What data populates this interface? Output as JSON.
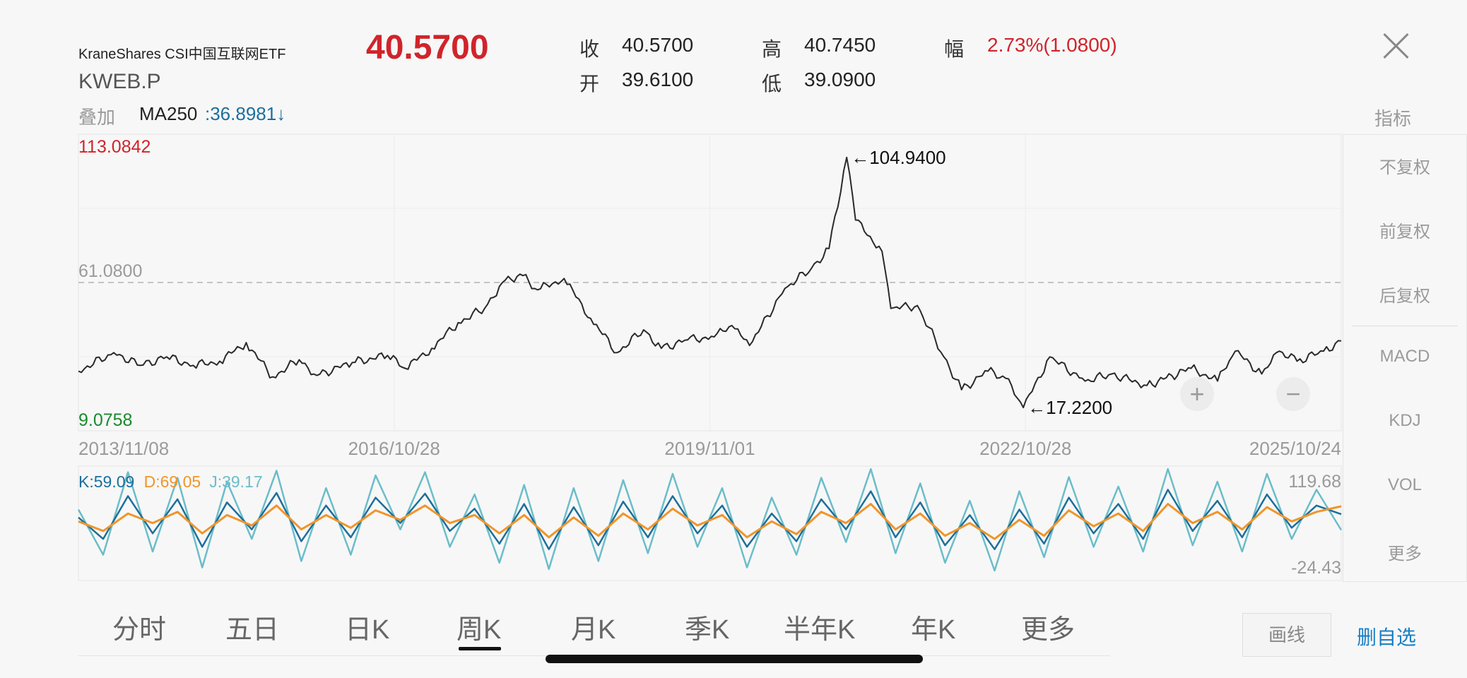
{
  "header": {
    "name": "KraneShares CSI中国互联网ETF",
    "code": "KWEB.P",
    "price": "40.5700",
    "quotes": [
      {
        "label": "收",
        "value": "40.5700"
      },
      {
        "label": "高",
        "value": "40.7450"
      },
      {
        "label": "幅",
        "value": "2.73%(1.0800)"
      },
      {
        "label": "开",
        "value": "39.6100"
      },
      {
        "label": "低",
        "value": "39.0900"
      }
    ],
    "overlay_label": "叠加",
    "ma_name": "MA250",
    "ma_value": ":36.8981↓",
    "indicator_title": "指标"
  },
  "colors": {
    "up_red": "#d0242b",
    "down_green": "#1a8a2e",
    "k_line": "#1c6f9c",
    "d_line": "#f0952a",
    "j_line": "#6bbdc9",
    "accent_blue": "#1a7fc4"
  },
  "icons": {
    "close": "close-icon",
    "zoom_in": "plus-icon",
    "zoom_out": "minus-icon"
  },
  "side_panel": [
    {
      "label": "不复权",
      "active": true
    },
    {
      "label": "前复权",
      "active": false
    },
    {
      "label": "后复权",
      "active": false
    },
    {
      "label": "MACD",
      "active": false
    },
    {
      "label": "KDJ",
      "active": true
    },
    {
      "label": "VOL",
      "active": false
    },
    {
      "label": "更多",
      "active": false
    }
  ],
  "tabs": [
    {
      "label": "分时",
      "active": false
    },
    {
      "label": "五日",
      "active": false
    },
    {
      "label": "日K",
      "active": false
    },
    {
      "label": "周K",
      "active": true
    },
    {
      "label": "月K",
      "active": false
    },
    {
      "label": "季K",
      "active": false
    },
    {
      "label": "半年K",
      "active": false
    },
    {
      "label": "年K",
      "active": false
    },
    {
      "label": "更多",
      "active": false
    }
  ],
  "buttons": {
    "draw": "画线",
    "remove_watch": "删自选"
  },
  "chart_data": [
    {
      "type": "line",
      "ylim": [
        9.0758,
        113.0842
      ],
      "y_top_label": "113.0842",
      "y_bottom_label": "9.0758",
      "ref_line": {
        "value": 61.08,
        "label": "61.0800"
      },
      "x_tick_labels": [
        "2013/11/08",
        "2016/10/28",
        "2019/11/01",
        "2022/10/28",
        "2025/10/24"
      ],
      "annotations": [
        {
          "label": "←104.9400",
          "x": "2021/02",
          "y": 104.94
        },
        {
          "label": "←17.2200",
          "x": "2022/10",
          "y": 17.22
        }
      ],
      "series": [
        {
          "values": [
            {
              "x": "2013/11",
              "y": 30.0
            },
            {
              "x": "2014/03",
              "y": 36.5
            },
            {
              "x": "2014/06",
              "y": 32.0
            },
            {
              "x": "2014/09",
              "y": 35.0
            },
            {
              "x": "2014/12",
              "y": 32.0
            },
            {
              "x": "2015/03",
              "y": 33.5
            },
            {
              "x": "2015/06",
              "y": 40.0
            },
            {
              "x": "2015/09",
              "y": 28.0
            },
            {
              "x": "2015/12",
              "y": 34.0
            },
            {
              "x": "2016/02",
              "y": 28.5
            },
            {
              "x": "2016/06",
              "y": 33.0
            },
            {
              "x": "2016/10",
              "y": 35.5
            },
            {
              "x": "2016/12",
              "y": 31.0
            },
            {
              "x": "2017/03",
              "y": 38.0
            },
            {
              "x": "2017/06",
              "y": 47.0
            },
            {
              "x": "2017/09",
              "y": 52.0
            },
            {
              "x": "2017/11",
              "y": 61.0
            },
            {
              "x": "2018/01",
              "y": 64.0
            },
            {
              "x": "2018/03",
              "y": 58.5
            },
            {
              "x": "2018/06",
              "y": 62.5
            },
            {
              "x": "2018/09",
              "y": 48.5
            },
            {
              "x": "2018/12",
              "y": 36.5
            },
            {
              "x": "2019/03",
              "y": 44.5
            },
            {
              "x": "2019/05",
              "y": 38.0
            },
            {
              "x": "2019/08",
              "y": 41.0
            },
            {
              "x": "2019/11",
              "y": 42.0
            },
            {
              "x": "2020/01",
              "y": 46.0
            },
            {
              "x": "2020/03",
              "y": 39.0
            },
            {
              "x": "2020/07",
              "y": 59.0
            },
            {
              "x": "2020/10",
              "y": 66.0
            },
            {
              "x": "2020/12",
              "y": 73.0
            },
            {
              "x": "2021/02",
              "y": 104.94
            },
            {
              "x": "2021/03",
              "y": 83.0
            },
            {
              "x": "2021/06",
              "y": 72.0
            },
            {
              "x": "2021/07",
              "y": 52.0
            },
            {
              "x": "2021/10",
              "y": 53.0
            },
            {
              "x": "2022/01",
              "y": 35.0
            },
            {
              "x": "2022/03",
              "y": 23.5
            },
            {
              "x": "2022/06",
              "y": 30.0
            },
            {
              "x": "2022/08",
              "y": 27.5
            },
            {
              "x": "2022/10",
              "y": 17.22
            },
            {
              "x": "2023/01",
              "y": 35.0
            },
            {
              "x": "2023/05",
              "y": 26.5
            },
            {
              "x": "2023/08",
              "y": 29.0
            },
            {
              "x": "2023/12",
              "y": 25.0
            },
            {
              "x": "2024/05",
              "y": 31.0
            },
            {
              "x": "2024/08",
              "y": 26.5
            },
            {
              "x": "2024/10",
              "y": 37.0
            },
            {
              "x": "2025/01",
              "y": 29.0
            },
            {
              "x": "2025/03",
              "y": 37.0
            },
            {
              "x": "2025/05",
              "y": 33.5
            },
            {
              "x": "2025/08",
              "y": 37.0
            },
            {
              "x": "2025/10",
              "y": 40.57
            }
          ]
        }
      ]
    },
    {
      "type": "line",
      "ylim": [
        -24.43,
        119.68
      ],
      "y_top_label": "119.68",
      "y_bottom_label": "-24.43",
      "legend": [
        {
          "name": "K",
          "value": "59.09",
          "text": "K:59.09"
        },
        {
          "name": "D",
          "value": "69.05",
          "text": "D:69.05"
        },
        {
          "name": "J",
          "value": "39.17",
          "text": "J:39.17"
        }
      ],
      "series": [
        {
          "name": "K",
          "values": [
            55,
            28,
            82,
            35,
            78,
            18,
            74,
            40,
            86,
            25,
            70,
            30,
            80,
            48,
            85,
            38,
            66,
            22,
            72,
            15,
            68,
            20,
            75,
            30,
            82,
            35,
            70,
            18,
            60,
            25,
            78,
            40,
            88,
            30,
            74,
            20,
            58,
            15,
            65,
            22,
            80,
            35,
            72,
            28,
            90,
            38,
            76,
            30,
            84,
            42,
            70,
            59.09
          ]
        },
        {
          "name": "D",
          "values": [
            50,
            38,
            60,
            48,
            62,
            35,
            58,
            45,
            70,
            40,
            58,
            42,
            64,
            52,
            70,
            48,
            58,
            35,
            58,
            30,
            55,
            32,
            60,
            40,
            66,
            45,
            58,
            30,
            50,
            34,
            62,
            48,
            72,
            40,
            60,
            32,
            48,
            28,
            52,
            32,
            64,
            44,
            60,
            38,
            72,
            48,
            62,
            40,
            68,
            50,
            62,
            69.05
          ]
        },
        {
          "name": "J",
          "values": [
            65,
            8,
            112,
            12,
            105,
            -8,
            100,
            28,
            114,
            0,
            92,
            8,
            108,
            40,
            112,
            18,
            84,
            -2,
            96,
            -10,
            92,
            0,
            102,
            10,
            110,
            18,
            92,
            -8,
            80,
            8,
            105,
            24,
            116,
            10,
            98,
            -2,
            76,
            -12,
            88,
            5,
            106,
            18,
            94,
            12,
            116,
            20,
            100,
            12,
            110,
            28,
            90,
            39.17
          ]
        }
      ]
    }
  ]
}
